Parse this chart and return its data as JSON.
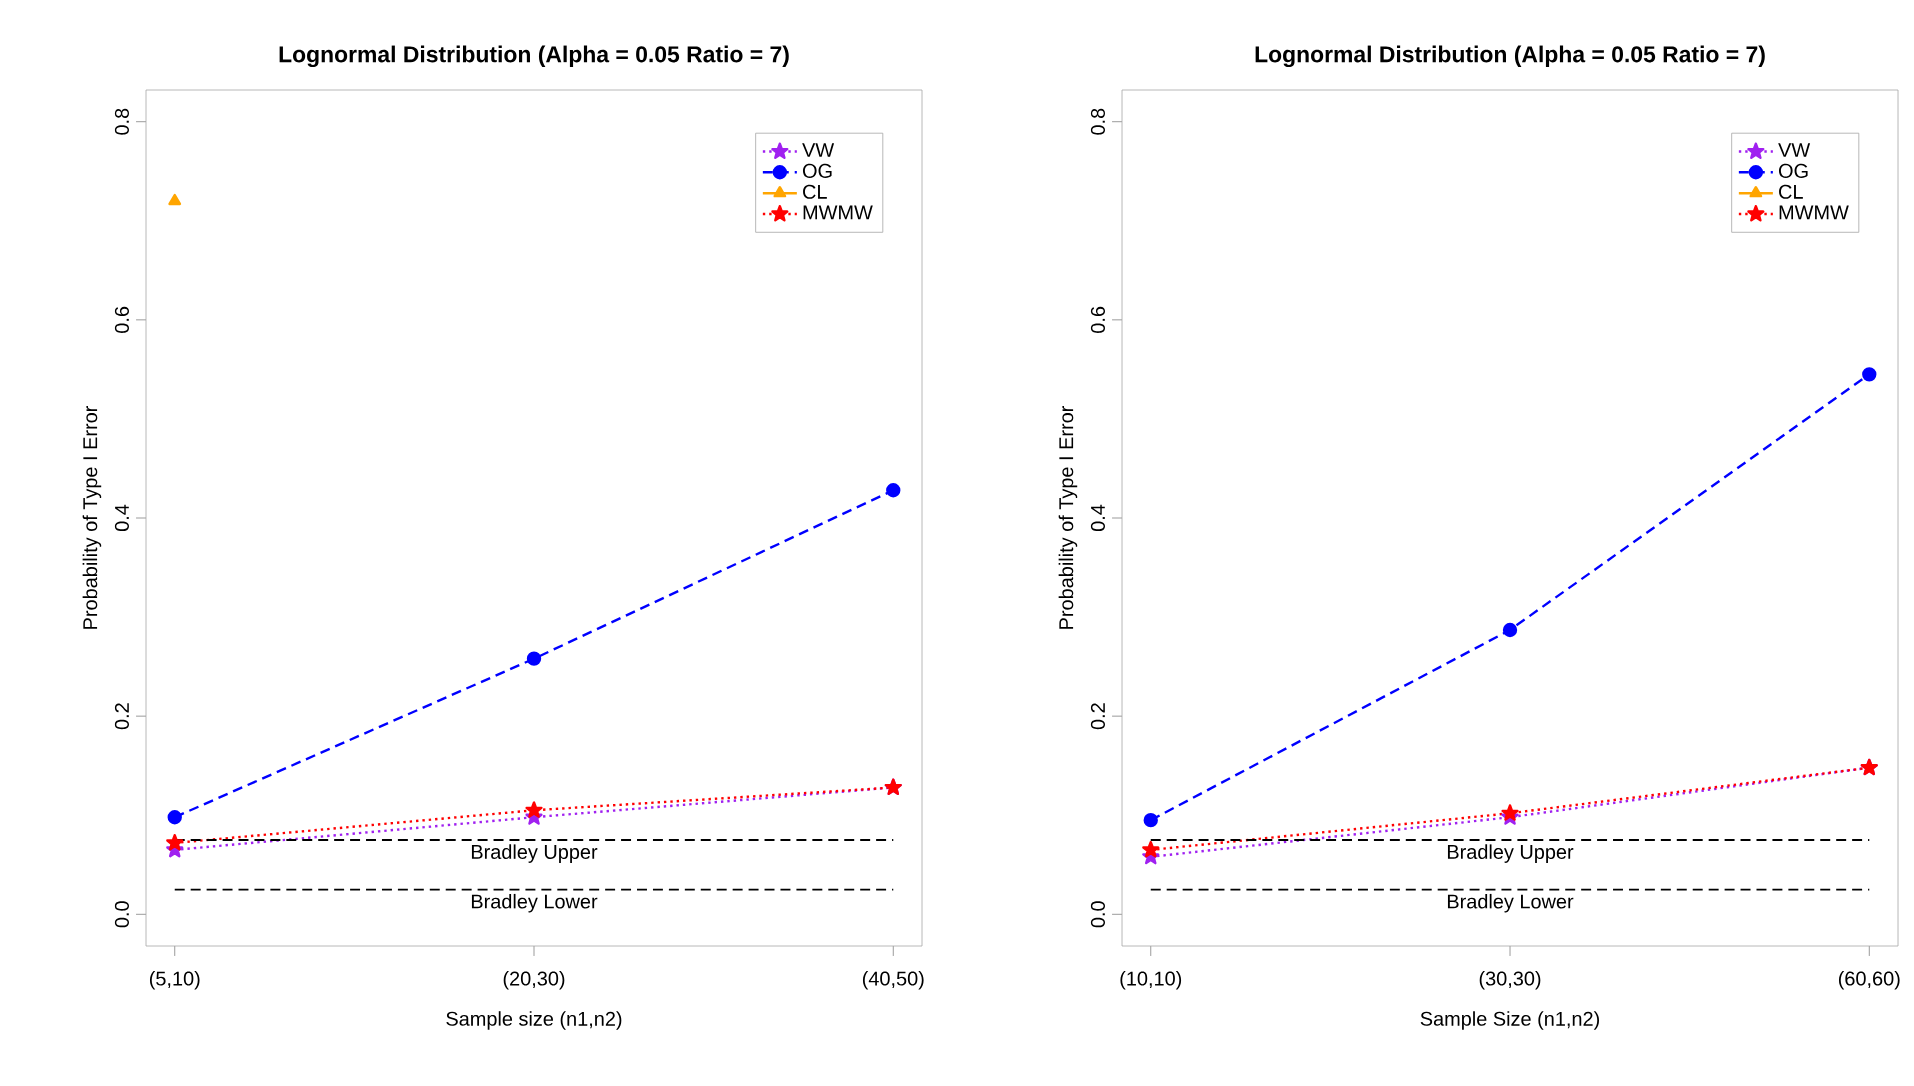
{
  "chart_data": [
    {
      "type": "line",
      "title": "Lognormal Distribution (Alpha = 0.05 Ratio = 7)",
      "xlabel": "Sample size (n1,n2)",
      "ylabel": "Probability of Type I Error",
      "categories": [
        "(5,10)",
        "(20,30)",
        "(40,50)"
      ],
      "series": [
        {
          "name": "VW",
          "color": "#a020f0",
          "marker": "star",
          "line_style": "dotted",
          "values": [
            0.065,
            0.098,
            0.128
          ]
        },
        {
          "name": "OG",
          "color": "#0000ff",
          "marker": "circle",
          "line_style": "dashed",
          "values": [
            0.098,
            0.258,
            0.428
          ]
        },
        {
          "name": "CL",
          "color": "#ffa500",
          "marker": "triangle",
          "line_style": "solid",
          "values": [
            0.72,
            null,
            null
          ]
        },
        {
          "name": "MWMW",
          "color": "#ff0000",
          "marker": "star",
          "line_style": "dotted",
          "values": [
            0.072,
            0.105,
            0.128
          ]
        }
      ],
      "ylim": [
        -0.032,
        0.832
      ],
      "yticks": [
        {
          "value": 0,
          "label": "0.0"
        },
        0.2,
        0.4,
        0.6,
        0.8
      ],
      "ref_lines": [
        {
          "axis": "y",
          "value": 0.075,
          "label": "Bradley Upper",
          "color": "#000000",
          "line_style": "dashed"
        },
        {
          "axis": "y",
          "value": 0.025,
          "label": "Bradley Lower",
          "color": "#000000",
          "line_style": "dashed"
        }
      ],
      "legend": "top right",
      "grid": false
    },
    {
      "type": "line",
      "title": "Lognormal Distribution (Alpha = 0.05 Ratio = 7)",
      "xlabel": "Sample Size (n1,n2)",
      "ylabel": "Probability of Type I Error",
      "categories": [
        "(10,10)",
        "(30,30)",
        "(60,60)"
      ],
      "series": [
        {
          "name": "VW",
          "color": "#a020f0",
          "marker": "star",
          "line_style": "dotted",
          "values": [
            0.058,
            0.098,
            0.148
          ]
        },
        {
          "name": "OG",
          "color": "#0000ff",
          "marker": "circle",
          "line_style": "dashed",
          "values": [
            0.095,
            0.287,
            0.545
          ]
        },
        {
          "name": "CL",
          "color": "#ffa500",
          "marker": "triangle",
          "line_style": "solid",
          "values": [
            null,
            null,
            null
          ]
        },
        {
          "name": "MWMW",
          "color": "#ff0000",
          "marker": "star",
          "line_style": "dotted",
          "values": [
            0.065,
            0.102,
            0.148
          ]
        }
      ],
      "ylim": [
        -0.032,
        0.832
      ],
      "yticks": [
        {
          "value": 0,
          "label": "0.0"
        },
        0.2,
        0.4,
        0.6,
        0.8
      ],
      "ref_lines": [
        {
          "axis": "y",
          "value": 0.075,
          "label": "Bradley Upper",
          "color": "#000000",
          "line_style": "dashed"
        },
        {
          "axis": "y",
          "value": 0.025,
          "label": "Bradley Lower",
          "color": "#000000",
          "line_style": "dashed"
        }
      ],
      "legend": "top right",
      "grid": false
    }
  ]
}
